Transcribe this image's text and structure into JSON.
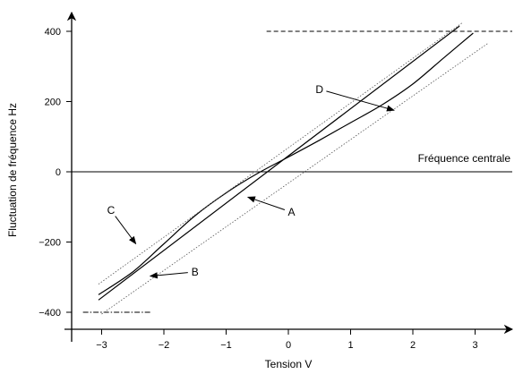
{
  "chart_data": {
    "type": "line",
    "title": "",
    "xlabel": "Tension  V",
    "ylabel": "Fluctuation de fréquence Hz",
    "xlim": [
      -3.3,
      3.65
    ],
    "ylim": [
      -430,
      480
    ],
    "x_ticks": [
      -3,
      -2,
      -1,
      0,
      1,
      2,
      3
    ],
    "x_tick_labels": [
      "−3",
      "−2",
      "−1",
      "0",
      "1",
      "2",
      "3"
    ],
    "y_ticks": [
      -400,
      -200,
      0,
      200,
      400
    ],
    "y_tick_labels": [
      "−400",
      "−200",
      "0",
      "200",
      "400"
    ],
    "grid": false,
    "colors": {
      "axis": "#000000",
      "curve": "#000000",
      "guide": "#555555"
    },
    "series": [
      {
        "label": "A",
        "style": "solid",
        "x": [
          -3.05,
          2.75
        ],
        "y": [
          -365,
          415
        ]
      },
      {
        "label": "B",
        "style": "dotted",
        "x": [
          -3.0,
          3.2
        ],
        "y": [
          -405,
          365
        ]
      },
      {
        "label": "C",
        "style": "solid",
        "x": [
          -3.05,
          -2.5,
          -2.0,
          -1.5,
          -1.0,
          -0.5,
          0.0,
          0.5,
          1.0,
          1.5,
          2.0,
          2.5,
          2.97
        ],
        "y": [
          -350,
          -285,
          -205,
          -125,
          -60,
          -5,
          42,
          90,
          140,
          190,
          250,
          325,
          395
        ]
      },
      {
        "label": "D",
        "style": "dotted",
        "x": [
          -3.05,
          2.8
        ],
        "y": [
          -320,
          425
        ]
      }
    ],
    "reference_lines": [
      {
        "y": 400,
        "style": "dashed",
        "x_from": -0.35
      },
      {
        "y": 0,
        "style": "solid",
        "label": "Fréquence centrale"
      },
      {
        "y": -400,
        "style": "dashdot",
        "x_from": -3.3,
        "x_to": -2.2
      }
    ],
    "annotations": [
      {
        "text": "A",
        "x": 0.05,
        "y": -115,
        "arrow_to": [
          -0.65,
          -72
        ]
      },
      {
        "text": "B",
        "x": -1.5,
        "y": -285,
        "arrow_to": [
          -2.22,
          -297
        ]
      },
      {
        "text": "C",
        "x": -2.85,
        "y": -110,
        "arrow_to": [
          -2.45,
          -205
        ]
      },
      {
        "text": "D",
        "x": 0.5,
        "y": 235,
        "arrow_to": [
          1.7,
          175
        ]
      }
    ]
  }
}
